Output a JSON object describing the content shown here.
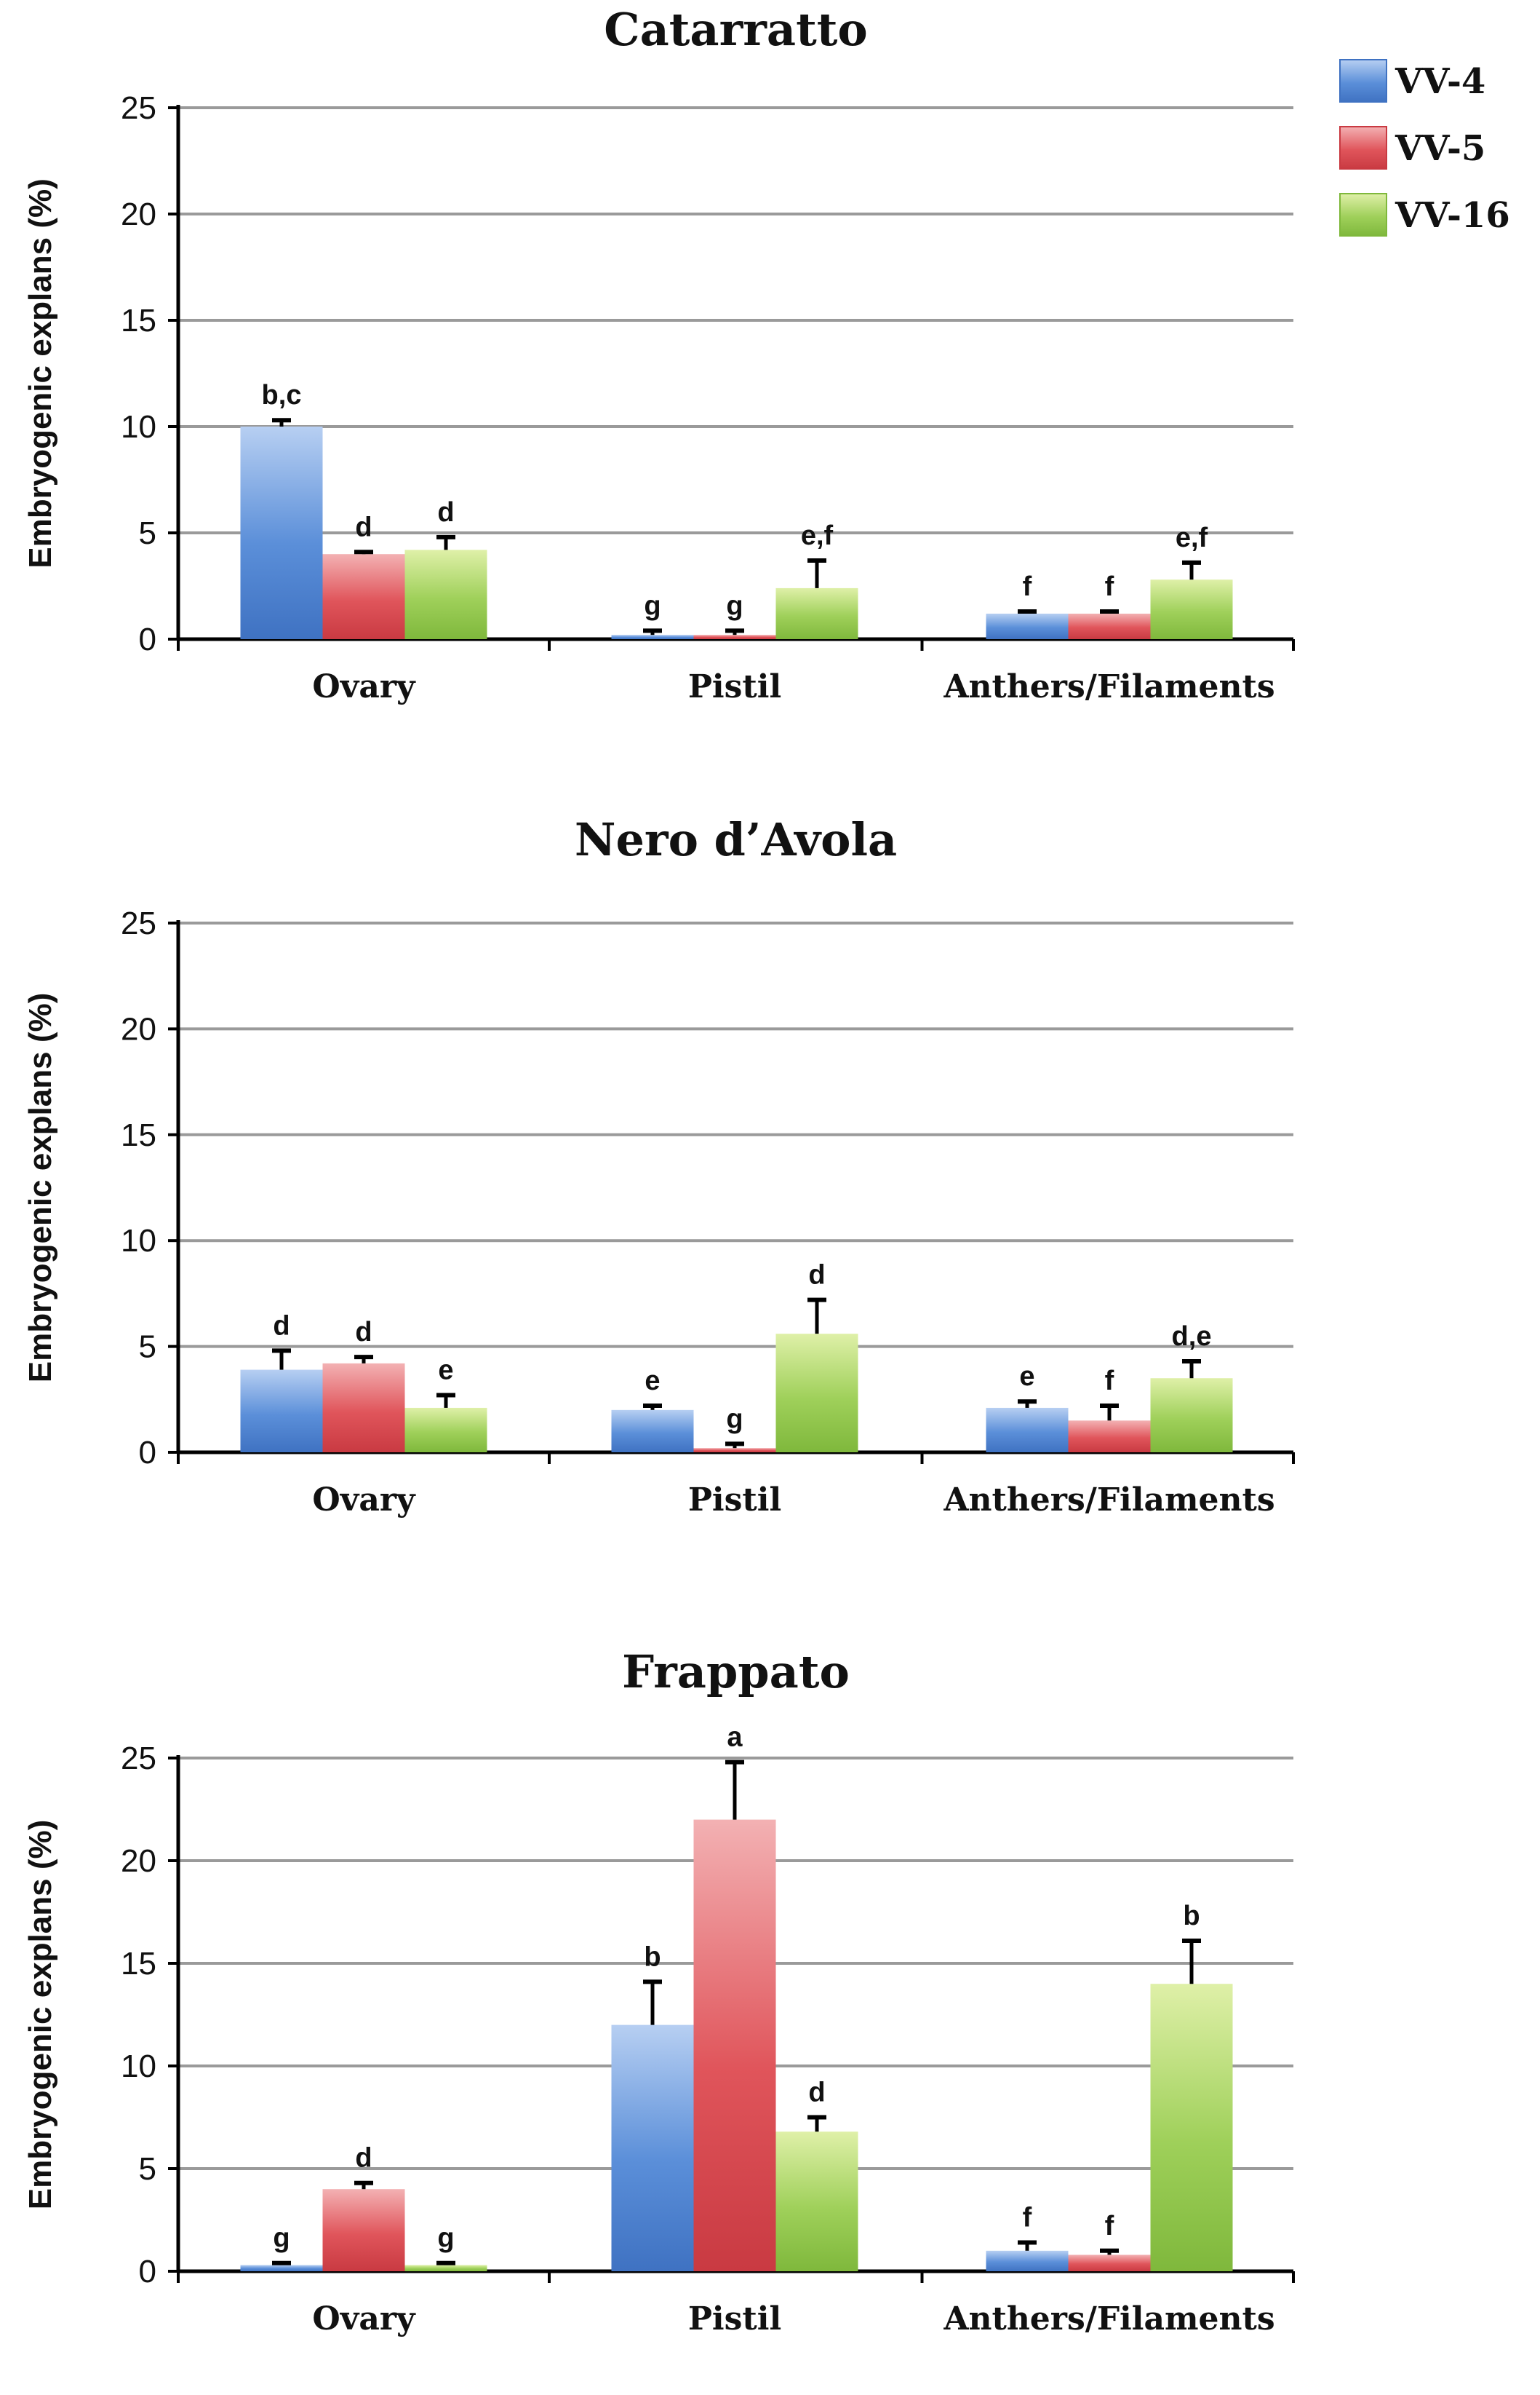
{
  "colors": {
    "VV-4": "#5b8fd9",
    "VV-5": "#e0555b",
    "VV-16": "#9fd05a",
    "grid": "#9a9a9a",
    "axis": "#000000",
    "errorbar": "#000000"
  },
  "legend": [
    {
      "name": "VV-4",
      "color": "#5b8fd9",
      "color_light": "#b7cff2",
      "color_dark": "#3f72c2"
    },
    {
      "name": "VV-5",
      "color": "#e0555b",
      "color_light": "#f3b1b3",
      "color_dark": "#c93a42"
    },
    {
      "name": "VV-16",
      "color": "#9fd05a",
      "color_light": "#dff0a8",
      "color_dark": "#7fb83c"
    }
  ],
  "chart_data": [
    {
      "type": "bar",
      "title": "Catarratto",
      "ylabel": "Embryogenic explans (%)",
      "xlabel": "",
      "ylim": [
        0,
        25
      ],
      "yticks": [
        0,
        5,
        10,
        15,
        20,
        25
      ],
      "categories": [
        "Ovary",
        "Pistil",
        "Anthers/Filaments"
      ],
      "series": [
        {
          "name": "VV-4",
          "values": [
            10,
            0.2,
            1.2
          ],
          "errors": [
            0.3,
            0.2,
            0.1
          ],
          "labels": [
            "b,c",
            "g",
            "f"
          ]
        },
        {
          "name": "VV-5",
          "values": [
            4,
            0.2,
            1.2
          ],
          "errors": [
            0.1,
            0.2,
            0.1
          ],
          "labels": [
            "d",
            "g",
            "f"
          ]
        },
        {
          "name": "VV-16",
          "values": [
            4.2,
            2.4,
            2.8
          ],
          "errors": [
            0.6,
            1.3,
            0.8
          ],
          "labels": [
            "d",
            "e,f",
            "e,f"
          ]
        }
      ]
    },
    {
      "type": "bar",
      "title": "Nero d’Avola",
      "ylabel": "Embryogenic explans (%)",
      "xlabel": "",
      "ylim": [
        0,
        25
      ],
      "yticks": [
        0,
        5,
        10,
        15,
        20,
        25
      ],
      "categories": [
        "Ovary",
        "Pistil",
        "Anthers/Filaments"
      ],
      "series": [
        {
          "name": "VV-4",
          "values": [
            3.9,
            2,
            2.1
          ],
          "errors": [
            0.9,
            0.2,
            0.3
          ],
          "labels": [
            "d",
            "e",
            "e"
          ]
        },
        {
          "name": "VV-5",
          "values": [
            4.2,
            0.2,
            1.5
          ],
          "errors": [
            0.3,
            0.2,
            0.7
          ],
          "labels": [
            "d",
            "g",
            "f"
          ]
        },
        {
          "name": "VV-16",
          "values": [
            2.1,
            5.6,
            3.5
          ],
          "errors": [
            0.6,
            1.6,
            0.8
          ],
          "labels": [
            "e",
            "d",
            "d,e"
          ]
        }
      ]
    },
    {
      "type": "bar",
      "title": "Frappato",
      "ylabel": "Embryogenic explans (%)",
      "xlabel": "",
      "ylim": [
        0,
        25
      ],
      "yticks": [
        0,
        5,
        10,
        15,
        20,
        25
      ],
      "categories": [
        "Ovary",
        "Pistil",
        "Anthers/Filaments"
      ],
      "series": [
        {
          "name": "VV-4",
          "values": [
            0.3,
            12,
            1
          ],
          "errors": [
            0.1,
            2.1,
            0.4
          ],
          "labels": [
            "g",
            "b",
            "f"
          ]
        },
        {
          "name": "VV-5",
          "values": [
            4,
            22,
            0.8
          ],
          "errors": [
            0.3,
            2.8,
            0.2
          ],
          "labels": [
            "d",
            "a",
            "f"
          ]
        },
        {
          "name": "VV-16",
          "values": [
            0.3,
            6.8,
            14
          ],
          "errors": [
            0.1,
            0.7,
            2.1
          ],
          "labels": [
            "g",
            "d",
            "b"
          ]
        }
      ]
    }
  ]
}
